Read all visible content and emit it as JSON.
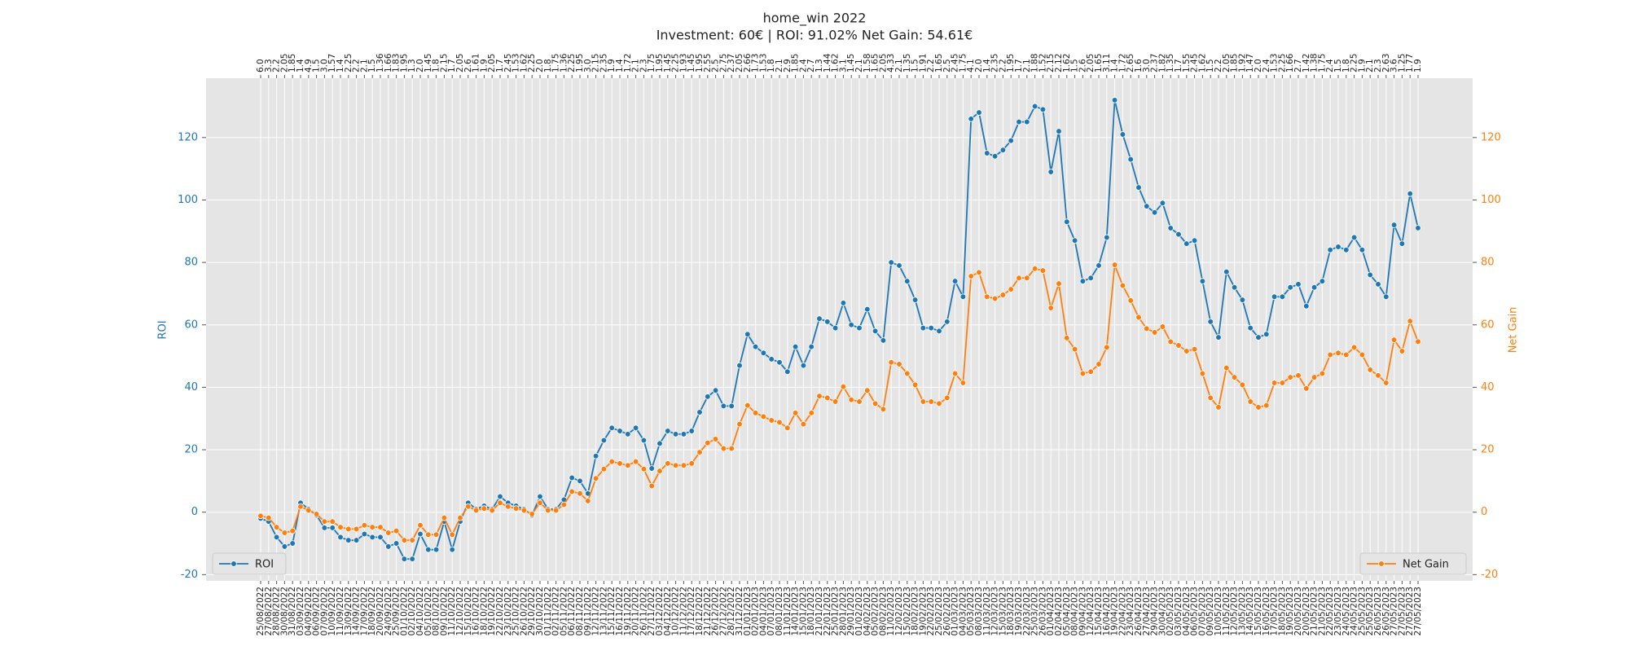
{
  "chart_data": {
    "type": "line",
    "title": "home_win 2022",
    "subtitle": "Investment: 60€ | ROI: 91.02% Net Gain: 54.61€",
    "ylabel": "ROI",
    "y2label": "Net Gain",
    "grid": true,
    "ylim": [
      -22,
      139
    ],
    "yticks": [
      -20,
      0,
      20,
      40,
      60,
      80,
      100,
      120
    ],
    "y2lim": [
      -22,
      139
    ],
    "y2ticks": [
      -20,
      0,
      20,
      40,
      60,
      80,
      100,
      120
    ],
    "categories": [
      "25/08/2022",
      "27/08/2022",
      "28/08/2022",
      "30/08/2022",
      "31/08/2022",
      "03/09/2022",
      "04/09/2022",
      "06/09/2022",
      "07/09/2022",
      "10/09/2022",
      "11/09/2022",
      "13/09/2022",
      "14/09/2022",
      "17/09/2022",
      "18/09/2022",
      "20/09/2022",
      "24/09/2022",
      "25/09/2022",
      "01/10/2022",
      "02/10/2022",
      "04/10/2022",
      "05/10/2022",
      "08/10/2022",
      "09/10/2022",
      "11/10/2022",
      "12/10/2022",
      "15/10/2022",
      "16/10/2022",
      "18/10/2022",
      "19/10/2022",
      "22/10/2022",
      "23/10/2022",
      "25/10/2022",
      "26/10/2022",
      "29/10/2022",
      "30/10/2022",
      "01/11/2022",
      "02/11/2022",
      "05/11/2022",
      "06/11/2022",
      "08/11/2022",
      "09/11/2022",
      "12/11/2022",
      "13/11/2022",
      "15/11/2022",
      "16/11/2022",
      "19/11/2022",
      "20/11/2022",
      "26/11/2022",
      "27/11/2022",
      "03/12/2022",
      "04/12/2022",
      "10/12/2022",
      "11/12/2022",
      "17/12/2022",
      "18/12/2022",
      "21/12/2022",
      "26/12/2022",
      "27/12/2022",
      "28/12/2022",
      "31/12/2022",
      "01/01/2023",
      "02/01/2023",
      "04/01/2023",
      "07/01/2023",
      "08/01/2023",
      "11/01/2023",
      "14/01/2023",
      "15/01/2023",
      "18/01/2023",
      "21/01/2023",
      "22/01/2023",
      "25/01/2023",
      "28/01/2023",
      "29/01/2023",
      "01/02/2023",
      "04/02/2023",
      "05/02/2023",
      "08/02/2023",
      "11/02/2023",
      "12/02/2023",
      "15/02/2023",
      "18/02/2023",
      "19/02/2023",
      "22/02/2023",
      "25/02/2023",
      "26/02/2023",
      "01/03/2023",
      "04/03/2023",
      "05/03/2023",
      "08/03/2023",
      "11/03/2023",
      "12/03/2023",
      "15/03/2023",
      "18/03/2023",
      "19/03/2023",
      "22/03/2023",
      "25/03/2023",
      "26/03/2023",
      "01/04/2023",
      "02/04/2023",
      "05/04/2023",
      "08/04/2023",
      "09/04/2023",
      "12/04/2023",
      "15/04/2023",
      "16/04/2023",
      "19/04/2023",
      "22/04/2023",
      "23/04/2023",
      "26/04/2023",
      "27/04/2023",
      "29/04/2023",
      "30/04/2023",
      "02/05/2023",
      "03/05/2023",
      "04/05/2023",
      "06/05/2023",
      "07/05/2023",
      "09/05/2023",
      "10/05/2023",
      "11/05/2023",
      "12/05/2023",
      "13/05/2023",
      "14/05/2023",
      "15/05/2023",
      "16/05/2023",
      "17/05/2023",
      "18/05/2023",
      "19/05/2023",
      "20/05/2023",
      "20/05/2023",
      "21/05/2023",
      "21/05/2023",
      "22/05/2023",
      "23/05/2023",
      "24/05/2023",
      "24/05/2023",
      "25/05/2023",
      "25/05/2023",
      "26/05/2023",
      "26/05/2023",
      "27/05/2023",
      "27/05/2023",
      "27/05/2023",
      "27/05/2023"
    ],
    "top_categories": [
      "6.0",
      "3.3",
      "2.2",
      "2.05",
      "1.85",
      "1.4",
      "4.9",
      "1.5",
      "3.0",
      "1.57",
      "1.4",
      "2.25",
      "2.2",
      "2.1",
      "1.5",
      "1.36",
      "1.66",
      "1.83",
      "1.95",
      "1.3",
      "2.0",
      "1.45",
      "1.8",
      "2.15",
      "1.7",
      "2.05",
      "2.6",
      "1.61",
      "1.9",
      "2.05",
      "1.7",
      "2.45",
      "1.53",
      "1.62",
      "2.25",
      "2.0",
      "1.8",
      "1.75",
      "1.36",
      "2.25",
      "1.95",
      "3.0",
      "2.15",
      "2.35",
      "1.9",
      "1.4",
      "1.72",
      "2.1",
      "2.3",
      "1.75",
      "1.95",
      "1.45",
      "2.25",
      "1.93",
      "1.45",
      "1.95",
      "2.55",
      "2.5",
      "2.75",
      "2.37",
      "2.05",
      "2.66",
      "1.73",
      "1.53",
      "1.8",
      "2.1",
      "2.9",
      "1.85",
      "2.4",
      "2.7",
      "1.3",
      "1.44",
      "1.62",
      "3.1",
      "1.45",
      "2.1",
      "1.58",
      "1.65",
      "2.05",
      "4.33",
      "2.1",
      "1.35",
      "1.5",
      "1.91",
      "2.2",
      "1.65",
      "2.5",
      "2.45",
      "1.75",
      "4.1",
      "2.0",
      "1.4",
      "2.35",
      "2.2",
      "1.95",
      "1.7",
      "2.1",
      "1.88",
      "1.52",
      "2.15",
      "2.12",
      "1.62",
      "1.5",
      "2.6",
      "2.05",
      "1.65",
      "3.11",
      "1.4",
      "1.72",
      "2.65",
      "1.6",
      "3.0",
      "2.37",
      "1.82",
      "1.35",
      "1.7",
      "1.55",
      "2.45",
      "1.62",
      "1.5",
      "2.2",
      "2.05",
      "1.85",
      "1.92",
      "1.47",
      "2.0",
      "2.4",
      "1.53",
      "2.25",
      "1.66",
      "2.7",
      "1.42",
      "1.38",
      "1.75",
      "2.4",
      "1.5",
      "1.8",
      "2.25",
      "1.9",
      "2.1",
      "2.3",
      "2.63",
      "3.6",
      "1.25",
      "1.77",
      "1.9"
    ],
    "series": [
      {
        "name": "ROI",
        "color": "#1f77b4",
        "axis": "y",
        "legend": "lower left",
        "values": [
          -2,
          -3,
          -8,
          -11,
          -10,
          3,
          1,
          -1,
          -5,
          -5,
          -8,
          -9,
          -9,
          -7,
          -8,
          -8,
          -11,
          -10,
          -15,
          -15,
          -7,
          -12,
          -12,
          -3,
          -12,
          -3,
          3,
          1,
          2,
          1,
          5,
          3,
          2,
          1,
          -1,
          5,
          1,
          1,
          4,
          11,
          10,
          6,
          18,
          23,
          27,
          26,
          25,
          27,
          23,
          14,
          22,
          26,
          25,
          25,
          26,
          32,
          37,
          39,
          34,
          34,
          47,
          57,
          53,
          51,
          49,
          48,
          45,
          53,
          47,
          53,
          62,
          61,
          59,
          67,
          60,
          59,
          65,
          58,
          55,
          80,
          79,
          74,
          68,
          59,
          59,
          58,
          61,
          74,
          69,
          126,
          128,
          115,
          114,
          116,
          119,
          125,
          125,
          130,
          129,
          109,
          122,
          93,
          87,
          74,
          75,
          79,
          88,
          132,
          121,
          113,
          104,
          98,
          96,
          99,
          91,
          89,
          86,
          87,
          74,
          61,
          56,
          77,
          72,
          68,
          59,
          56,
          57,
          69,
          69,
          72,
          73,
          66,
          72,
          74,
          84,
          85,
          84,
          88,
          84,
          76,
          73,
          69,
          92,
          86,
          102,
          91.02
        ]
      },
      {
        "name": "Net Gain",
        "color": "#ff7f0e",
        "axis": "y2",
        "legend": "lower right",
        "values": [
          -1.2,
          -1.8,
          -4.8,
          -6.6,
          -6,
          1.8,
          0.6,
          -0.6,
          -3,
          -3,
          -4.8,
          -5.4,
          -5.4,
          -4.2,
          -4.8,
          -4.8,
          -6.6,
          -6,
          -9,
          -9,
          -4.2,
          -7.2,
          -7.2,
          -1.8,
          -7.2,
          -1.8,
          1.8,
          0.6,
          1.2,
          0.6,
          3,
          1.8,
          1.2,
          0.6,
          -0.6,
          3,
          0.6,
          0.6,
          2.4,
          6.6,
          6,
          3.6,
          10.8,
          13.8,
          16.2,
          15.6,
          15,
          16.2,
          13.8,
          8.4,
          13.2,
          15.6,
          15,
          15,
          15.6,
          19.2,
          22.2,
          23.4,
          20.4,
          20.4,
          28.2,
          34.2,
          31.8,
          30.6,
          29.4,
          28.8,
          27,
          31.8,
          28.2,
          31.8,
          37.2,
          36.6,
          35.4,
          40.2,
          36,
          35.4,
          39,
          34.8,
          33,
          48,
          47.4,
          44.4,
          40.8,
          35.4,
          35.4,
          34.8,
          36.6,
          44.4,
          41.4,
          75.6,
          76.8,
          69,
          68.4,
          69.6,
          71.4,
          75,
          75,
          78,
          77.4,
          65.4,
          73.2,
          55.8,
          52.2,
          44.4,
          45,
          47.4,
          52.8,
          79.2,
          72.6,
          67.8,
          62.4,
          58.8,
          57.6,
          59.4,
          54.6,
          53.4,
          51.6,
          52.2,
          44.4,
          36.6,
          33.6,
          46.2,
          43.2,
          40.8,
          35.4,
          33.6,
          34.2,
          41.4,
          41.4,
          43.2,
          43.8,
          39.6,
          43.2,
          44.4,
          50.4,
          51,
          50.4,
          52.8,
          50.4,
          45.6,
          43.8,
          41.4,
          55.2,
          51.6,
          61.2,
          54.61
        ]
      }
    ]
  }
}
